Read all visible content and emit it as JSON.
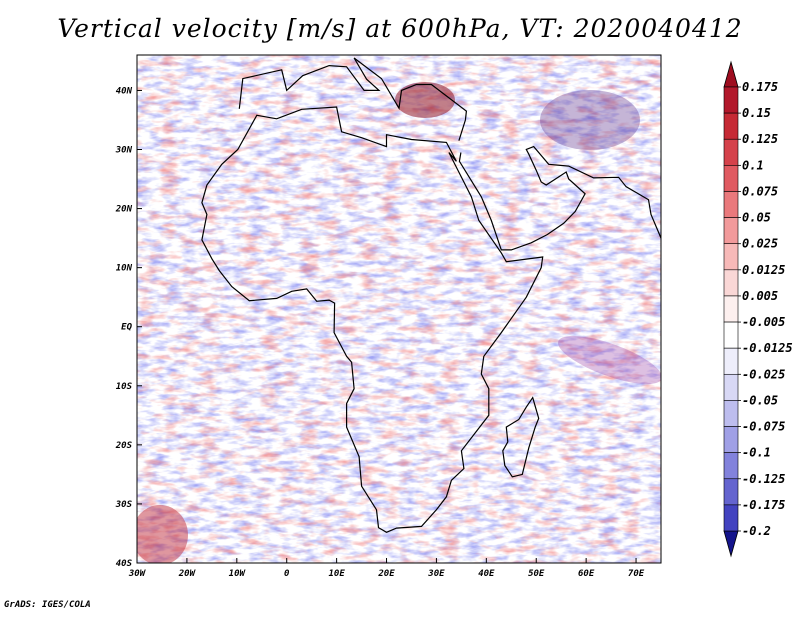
{
  "title": "Vertical velocity [m/s] at 600hPa, VT: 2020040412",
  "credit": "GrADS: IGES/COLA",
  "map": {
    "lon_range": [
      -30,
      75
    ],
    "lat_range": [
      -40,
      46
    ],
    "x_ticks": [
      {
        "lon": -30,
        "label": "30W"
      },
      {
        "lon": -20,
        "label": "20W"
      },
      {
        "lon": -10,
        "label": "10W"
      },
      {
        "lon": 0,
        "label": "0"
      },
      {
        "lon": 10,
        "label": "10E"
      },
      {
        "lon": 20,
        "label": "20E"
      },
      {
        "lon": 30,
        "label": "30E"
      },
      {
        "lon": 40,
        "label": "40E"
      },
      {
        "lon": 50,
        "label": "50E"
      },
      {
        "lon": 60,
        "label": "60E"
      },
      {
        "lon": 70,
        "label": "70E"
      }
    ],
    "y_ticks": [
      {
        "lat": 40,
        "label": "40N"
      },
      {
        "lat": 30,
        "label": "30N"
      },
      {
        "lat": 20,
        "label": "20N"
      },
      {
        "lat": 10,
        "label": "10N"
      },
      {
        "lat": 0,
        "label": "EQ"
      },
      {
        "lat": -10,
        "label": "10S"
      },
      {
        "lat": -20,
        "label": "20S"
      },
      {
        "lat": -30,
        "label": "30S"
      },
      {
        "lat": -40,
        "label": "40S"
      }
    ],
    "africa_outline_lonlat": [
      [
        -17,
        21
      ],
      [
        -16,
        24
      ],
      [
        -13,
        27.5
      ],
      [
        -9.8,
        30
      ],
      [
        -6,
        35.8
      ],
      [
        -2,
        35.2
      ],
      [
        3,
        36.8
      ],
      [
        10,
        37.2
      ],
      [
        11,
        33
      ],
      [
        15,
        32
      ],
      [
        20,
        30.5
      ],
      [
        20,
        32.5
      ],
      [
        25,
        31.7
      ],
      [
        32,
        31.2
      ],
      [
        34,
        28
      ],
      [
        32.5,
        29.5
      ],
      [
        37,
        22
      ],
      [
        38.5,
        18
      ],
      [
        43,
        12.5
      ],
      [
        44,
        11
      ],
      [
        51.3,
        11.8
      ],
      [
        51,
        10
      ],
      [
        48,
        5
      ],
      [
        43,
        -1
      ],
      [
        39.5,
        -5
      ],
      [
        39,
        -8
      ],
      [
        40.5,
        -10.5
      ],
      [
        40.5,
        -15
      ],
      [
        35,
        -21
      ],
      [
        35.5,
        -24
      ],
      [
        33,
        -26
      ],
      [
        32,
        -28.8
      ],
      [
        30,
        -31
      ],
      [
        27,
        -33.8
      ],
      [
        22,
        -34.1
      ],
      [
        20,
        -34.8
      ],
      [
        18.4,
        -34
      ],
      [
        18,
        -31
      ],
      [
        15,
        -27
      ],
      [
        14.5,
        -22
      ],
      [
        12,
        -17
      ],
      [
        12,
        -13
      ],
      [
        13.5,
        -10.5
      ],
      [
        13,
        -6
      ],
      [
        12,
        -5
      ],
      [
        9.5,
        -1
      ],
      [
        9.6,
        4
      ],
      [
        8.5,
        4.5
      ],
      [
        6,
        4.3
      ],
      [
        4,
        6.4
      ],
      [
        1,
        6
      ],
      [
        -2,
        4.8
      ],
      [
        -7.5,
        4.4
      ],
      [
        -11,
        6.8
      ],
      [
        -13.5,
        9.5
      ],
      [
        -15,
        11.5
      ],
      [
        -17,
        14.7
      ],
      [
        -16,
        19
      ],
      [
        -17,
        21
      ]
    ],
    "madagascar_outline_lonlat": [
      [
        49.3,
        -12
      ],
      [
        50.5,
        -15.5
      ],
      [
        49.8,
        -17
      ],
      [
        48.5,
        -20.5
      ],
      [
        47.2,
        -25
      ],
      [
        45.2,
        -25.4
      ],
      [
        43.7,
        -23.5
      ],
      [
        43.3,
        -21
      ],
      [
        44.3,
        -19.5
      ],
      [
        44,
        -17
      ],
      [
        46.5,
        -15.7
      ],
      [
        48,
        -13.6
      ],
      [
        49.3,
        -12
      ]
    ],
    "arabia_outline_lonlat": [
      [
        34.9,
        29.5
      ],
      [
        34.6,
        28
      ],
      [
        39,
        22
      ],
      [
        41,
        18
      ],
      [
        43,
        13
      ],
      [
        45,
        13
      ],
      [
        49,
        14.2
      ],
      [
        52.2,
        15.6
      ],
      [
        55.5,
        17.5
      ],
      [
        57.8,
        19.5
      ],
      [
        59.8,
        22.5
      ],
      [
        56.5,
        25
      ],
      [
        56,
        26.2
      ],
      [
        52,
        24
      ],
      [
        51,
        24.5
      ],
      [
        50,
        26.5
      ],
      [
        48.5,
        29.2
      ],
      [
        48,
        30
      ],
      [
        49.5,
        30.5
      ],
      [
        52.5,
        27.5
      ],
      [
        56.5,
        27.2
      ],
      [
        61.5,
        25.2
      ],
      [
        66.5,
        25.3
      ],
      [
        68,
        23.7
      ],
      [
        72.5,
        21.5
      ],
      [
        73,
        19
      ],
      [
        75,
        15
      ]
    ],
    "med_north_coast_lonlat": [
      [
        -9.5,
        36.9
      ],
      [
        -8.8,
        42
      ],
      [
        -1,
        43.5
      ],
      [
        0,
        40
      ],
      [
        3.2,
        42.5
      ],
      [
        8.5,
        44.2
      ],
      [
        12,
        44
      ],
      [
        15.5,
        40
      ],
      [
        18.5,
        40
      ],
      [
        16,
        41.9
      ],
      [
        13.5,
        45.5
      ],
      [
        19,
        42
      ],
      [
        22.5,
        37
      ],
      [
        23,
        40
      ],
      [
        26,
        41
      ],
      [
        29,
        41
      ],
      [
        36,
        36.5
      ],
      [
        35.8,
        35
      ],
      [
        34.5,
        31.5
      ]
    ],
    "colorbar": {
      "levels": [
        {
          "label": "0.175",
          "color": "#b2182b"
        },
        {
          "label": "0.15",
          "color": "#c62a35"
        },
        {
          "label": "0.125",
          "color": "#d5424b"
        },
        {
          "label": "0.1",
          "color": "#e05a61"
        },
        {
          "label": "0.075",
          "color": "#ea797c"
        },
        {
          "label": "0.05",
          "color": "#f29a9b"
        },
        {
          "label": "0.025",
          "color": "#f7b9b8"
        },
        {
          "label": "0.0125",
          "color": "#fad7d6"
        },
        {
          "label": "0.005",
          "color": "#fdf0ef"
        },
        {
          "label": "-0.005",
          "color": "#ffffff"
        },
        {
          "label": "-0.0125",
          "color": "#eeeefb"
        },
        {
          "label": "-0.025",
          "color": "#d8d8f5"
        },
        {
          "label": "-0.05",
          "color": "#bdbdee"
        },
        {
          "label": "-0.075",
          "color": "#a0a0e6"
        },
        {
          "label": "-0.1",
          "color": "#8282dc"
        },
        {
          "label": "-0.125",
          "color": "#6464cf"
        },
        {
          "label": "-0.175",
          "color": "#4343c0"
        },
        {
          "label": "-0.2",
          "color": "#2020aa"
        }
      ],
      "top_arrow_color": "#9e0d1f",
      "bottom_arrow_color": "#14148c"
    }
  }
}
